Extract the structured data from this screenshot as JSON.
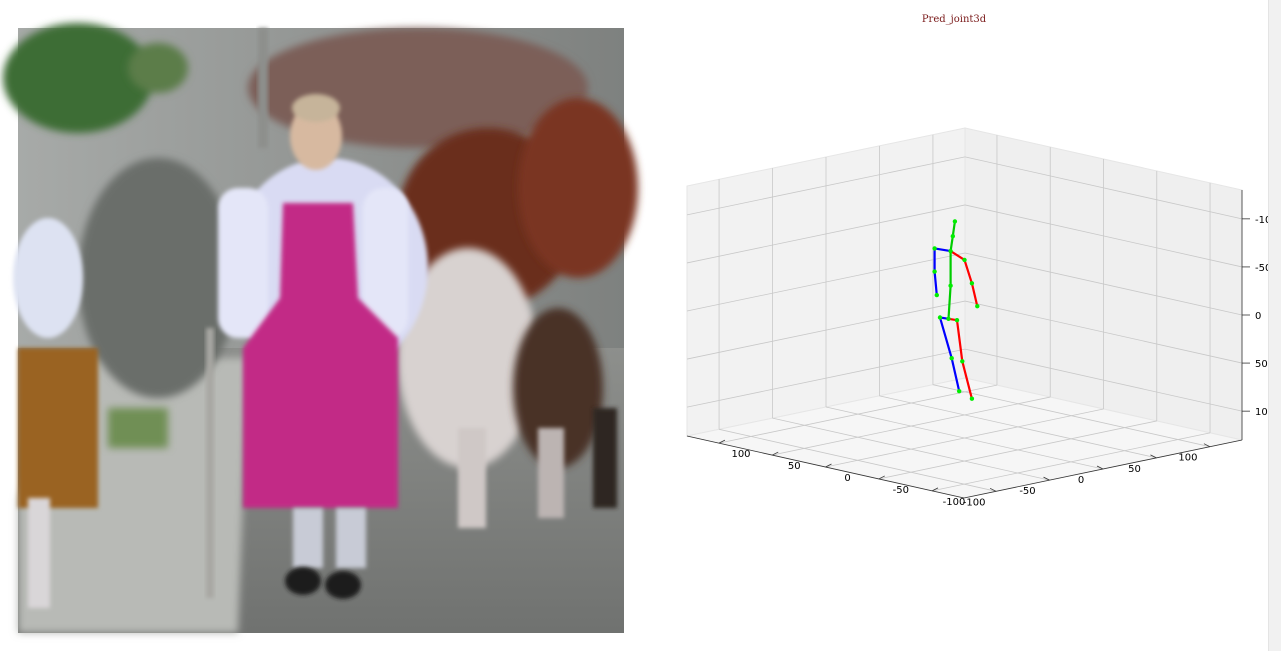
{
  "chart_data": {
    "type": "3d-skeleton",
    "title": "Pred_joint3d",
    "colors": {
      "left_limbs": "#0000ff",
      "right_limbs": "#ff0000",
      "spine": "#00cc00",
      "joints": "#00ee00",
      "pane": "#f2f2f2",
      "grid": "#c8c8c8"
    },
    "axes": {
      "x": {
        "lim": [
          -130,
          130
        ],
        "ticks": [
          -100,
          -50,
          0,
          50,
          100
        ]
      },
      "y": {
        "lim": [
          -130,
          130
        ],
        "ticks": [
          -100,
          -50,
          0,
          50,
          100
        ]
      },
      "z": {
        "lim": [
          -130,
          130
        ],
        "ticks": [
          -100,
          -50,
          0,
          50,
          100
        ],
        "inverted": true
      }
    },
    "joints": [
      {
        "name": "hip",
        "x": -10,
        "y": 5,
        "z": 5
      },
      {
        "name": "r_hip",
        "x": -15,
        "y": -8,
        "z": 2
      },
      {
        "name": "r_knee",
        "x": -12,
        "y": -10,
        "z": 45
      },
      {
        "name": "r_ankle",
        "x": -5,
        "y": -12,
        "z": 85
      },
      {
        "name": "l_hip",
        "x": -5,
        "y": 18,
        "z": 8
      },
      {
        "name": "l_knee",
        "x": 0,
        "y": 12,
        "z": 50
      },
      {
        "name": "l_ankle",
        "x": 5,
        "y": 10,
        "z": 85
      },
      {
        "name": "spine",
        "x": -10,
        "y": 3,
        "z": -30
      },
      {
        "name": "thorax",
        "x": -8,
        "y": 5,
        "z": -65
      },
      {
        "name": "neck",
        "x": -6,
        "y": 5,
        "z": -80
      },
      {
        "name": "head",
        "x": -4,
        "y": 5,
        "z": -95
      },
      {
        "name": "l_shoulder",
        "x": -10,
        "y": 18,
        "z": -65
      },
      {
        "name": "l_elbow",
        "x": -8,
        "y": 20,
        "z": -40
      },
      {
        "name": "l_wrist",
        "x": -6,
        "y": 20,
        "z": -15
      },
      {
        "name": "r_shoulder",
        "x": -10,
        "y": -10,
        "z": -60
      },
      {
        "name": "r_elbow",
        "x": -5,
        "y": -12,
        "z": -35
      },
      {
        "name": "r_wrist",
        "x": 0,
        "y": -12,
        "z": -10
      }
    ],
    "bones": [
      {
        "from": 0,
        "to": 1,
        "side": "right"
      },
      {
        "from": 1,
        "to": 2,
        "side": "right"
      },
      {
        "from": 2,
        "to": 3,
        "side": "right"
      },
      {
        "from": 0,
        "to": 4,
        "side": "left"
      },
      {
        "from": 4,
        "to": 5,
        "side": "left"
      },
      {
        "from": 5,
        "to": 6,
        "side": "left"
      },
      {
        "from": 0,
        "to": 7,
        "side": "center"
      },
      {
        "from": 7,
        "to": 8,
        "side": "center"
      },
      {
        "from": 8,
        "to": 9,
        "side": "center"
      },
      {
        "from": 9,
        "to": 10,
        "side": "center"
      },
      {
        "from": 8,
        "to": 11,
        "side": "left"
      },
      {
        "from": 11,
        "to": 12,
        "side": "left"
      },
      {
        "from": 12,
        "to": 13,
        "side": "left"
      },
      {
        "from": 8,
        "to": 14,
        "side": "right"
      },
      {
        "from": 14,
        "to": 15,
        "side": "right"
      },
      {
        "from": 15,
        "to": 16,
        "side": "right"
      }
    ]
  }
}
